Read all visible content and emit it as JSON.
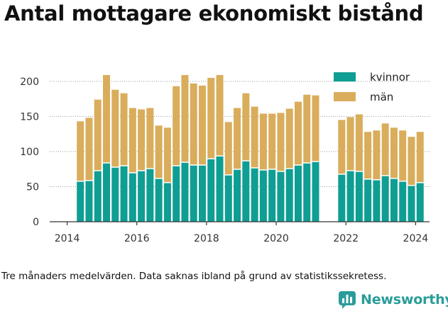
{
  "chart_data": {
    "type": "bar",
    "stacked": true,
    "title": "Antal mottagare ekonomiskt bistånd",
    "caption": "Tre månaders medelvärden. Data saknas ibland på grund av statistikssekretess.",
    "xlabel": "",
    "ylabel": "",
    "ylim": [
      0,
      220
    ],
    "xlim": [
      2013.5,
      2024.4
    ],
    "grid": true,
    "legend_position": "top-right",
    "xticks": [
      "2014",
      "2016",
      "2018",
      "2020",
      "2022",
      "2024"
    ],
    "yticks": [
      "0",
      "50",
      "100",
      "150",
      "200"
    ],
    "x": [
      2014.38,
      2014.63,
      2014.88,
      2015.13,
      2015.38,
      2015.63,
      2015.88,
      2016.13,
      2016.38,
      2016.63,
      2016.88,
      2017.13,
      2017.38,
      2017.63,
      2017.88,
      2018.13,
      2018.38,
      2018.63,
      2018.88,
      2019.13,
      2019.38,
      2019.63,
      2019.88,
      2020.13,
      2020.38,
      2020.63,
      2020.88,
      2021.13,
      2021.88,
      2022.13,
      2022.38,
      2022.63,
      2022.88,
      2023.13,
      2023.38,
      2023.63,
      2023.88,
      2024.13
    ],
    "series": [
      {
        "name": "kvinnor",
        "color": "#0f9e93",
        "values": [
          57,
          58,
          72,
          83,
          77,
          79,
          69,
          72,
          75,
          61,
          55,
          79,
          84,
          80,
          80,
          89,
          93,
          66,
          74,
          86,
          76,
          73,
          74,
          71,
          75,
          80,
          83,
          85,
          67,
          72,
          71,
          60,
          59,
          65,
          61,
          57,
          51,
          55
        ]
      },
      {
        "name": "män",
        "color": "#d9ad5b",
        "values": [
          86,
          90,
          102,
          126,
          111,
          104,
          93,
          88,
          87,
          76,
          79,
          114,
          125,
          117,
          114,
          116,
          116,
          76,
          88,
          97,
          88,
          81,
          80,
          84,
          86,
          91,
          98,
          95,
          78,
          77,
          82,
          68,
          71,
          75,
          73,
          73,
          70,
          73
        ]
      }
    ]
  },
  "brand": {
    "name": "Newsworthy",
    "icon": "bar-chart-logo-icon",
    "color": "#2a9d9a"
  }
}
